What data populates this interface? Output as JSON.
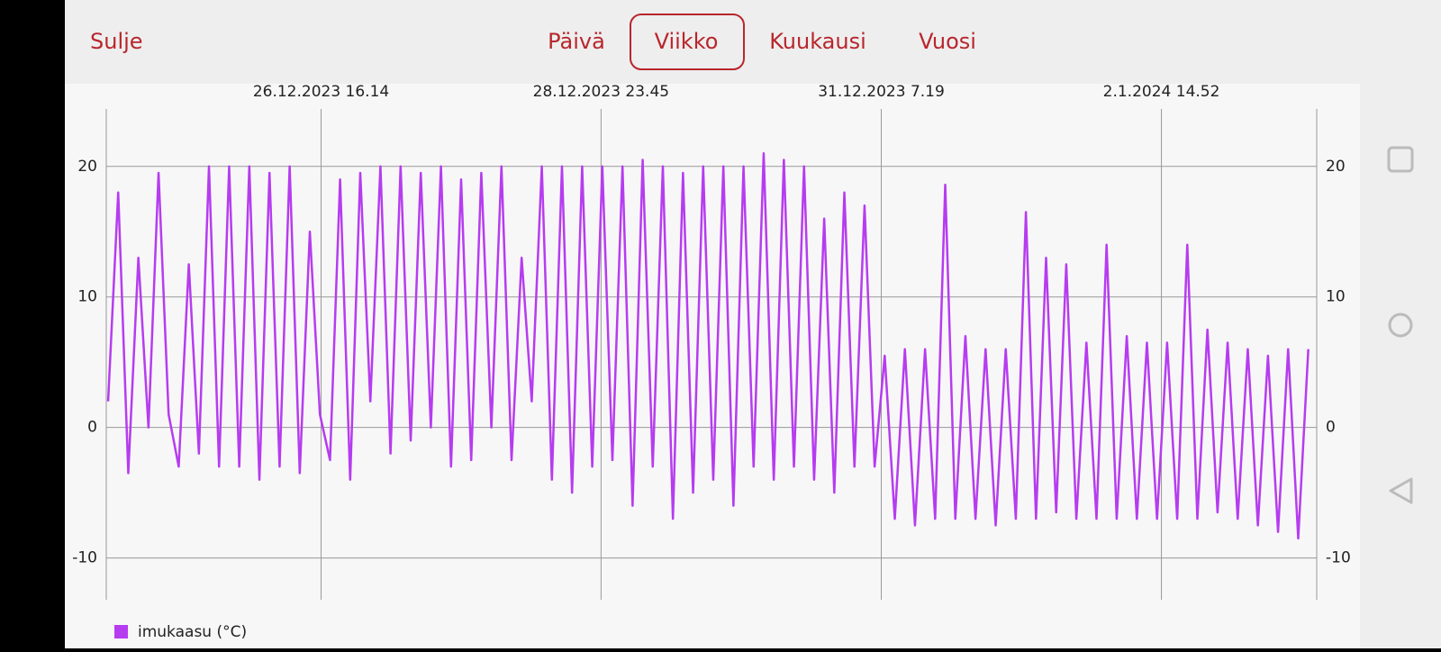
{
  "nav": {
    "close": "Sulje",
    "tabs": [
      "Päivä",
      "Viikko",
      "Kuukausi",
      "Vuosi"
    ],
    "active_tab": 1
  },
  "chart_data": {
    "type": "line",
    "grid": true,
    "xlim": [
      "2023-12-24 21:38",
      "2024-01-03 21:40"
    ],
    "xticks": [
      {
        "value": "2023-12-26 16:14",
        "label": "26.12.2023 16.14"
      },
      {
        "value": "2023-12-28 23:45",
        "label": "28.12.2023 23.45"
      },
      {
        "value": "2023-12-31 07:19",
        "label": "31.12.2023 7.19"
      },
      {
        "value": "2024-01-02 14:52",
        "label": "2.1.2024 14.52"
      }
    ],
    "ylim": [
      -13.2,
      24.4
    ],
    "yticks": [
      -10,
      0,
      10,
      20
    ],
    "x": [
      "2023-12-24 22:00",
      "2023-12-25 00:00",
      "2023-12-25 02:00",
      "2023-12-25 04:00",
      "2023-12-25 06:00",
      "2023-12-25 08:00",
      "2023-12-25 10:00",
      "2023-12-25 12:00",
      "2023-12-25 14:00",
      "2023-12-25 16:00",
      "2023-12-25 18:00",
      "2023-12-25 20:00",
      "2023-12-25 22:00",
      "2023-12-26 00:00",
      "2023-12-26 02:00",
      "2023-12-26 04:00",
      "2023-12-26 06:00",
      "2023-12-26 08:00",
      "2023-12-26 10:00",
      "2023-12-26 12:00",
      "2023-12-26 14:00",
      "2023-12-26 16:00",
      "2023-12-26 18:00",
      "2023-12-26 20:00",
      "2023-12-26 22:00",
      "2023-12-27 00:00",
      "2023-12-27 02:00",
      "2023-12-27 04:00",
      "2023-12-27 06:00",
      "2023-12-27 08:00",
      "2023-12-27 10:00",
      "2023-12-27 12:00",
      "2023-12-27 14:00",
      "2023-12-27 16:00",
      "2023-12-27 18:00",
      "2023-12-27 20:00",
      "2023-12-27 22:00",
      "2023-12-28 00:00",
      "2023-12-28 02:00",
      "2023-12-28 04:00",
      "2023-12-28 06:00",
      "2023-12-28 08:00",
      "2023-12-28 10:00",
      "2023-12-28 12:00",
      "2023-12-28 14:00",
      "2023-12-28 16:00",
      "2023-12-28 18:00",
      "2023-12-28 20:00",
      "2023-12-28 22:00",
      "2023-12-29 00:00",
      "2023-12-29 02:00",
      "2023-12-29 04:00",
      "2023-12-29 06:00",
      "2023-12-29 08:00",
      "2023-12-29 10:00",
      "2023-12-29 12:00",
      "2023-12-29 14:00",
      "2023-12-29 16:00",
      "2023-12-29 18:00",
      "2023-12-29 20:00",
      "2023-12-29 22:00",
      "2023-12-30 00:00",
      "2023-12-30 02:00",
      "2023-12-30 04:00",
      "2023-12-30 06:00",
      "2023-12-30 08:00",
      "2023-12-30 10:00",
      "2023-12-30 12:00",
      "2023-12-30 14:00",
      "2023-12-30 16:00",
      "2023-12-30 18:00",
      "2023-12-30 20:00",
      "2023-12-30 22:00",
      "2023-12-31 00:00",
      "2023-12-31 02:00",
      "2023-12-31 04:00",
      "2023-12-31 06:00",
      "2023-12-31 08:00",
      "2023-12-31 10:00",
      "2023-12-31 12:00",
      "2023-12-31 14:00",
      "2023-12-31 16:00",
      "2023-12-31 18:00",
      "2023-12-31 20:00",
      "2023-12-31 22:00",
      "2024-01-01 00:00",
      "2024-01-01 02:00",
      "2024-01-01 04:00",
      "2024-01-01 06:00",
      "2024-01-01 08:00",
      "2024-01-01 10:00",
      "2024-01-01 12:00",
      "2024-01-01 14:00",
      "2024-01-01 16:00",
      "2024-01-01 18:00",
      "2024-01-01 20:00",
      "2024-01-01 22:00",
      "2024-01-02 00:00",
      "2024-01-02 02:00",
      "2024-01-02 04:00",
      "2024-01-02 06:00",
      "2024-01-02 08:00",
      "2024-01-02 10:00",
      "2024-01-02 12:00",
      "2024-01-02 14:00",
      "2024-01-02 16:00",
      "2024-01-02 18:00",
      "2024-01-02 20:00",
      "2024-01-02 22:00",
      "2024-01-03 00:00",
      "2024-01-03 02:00",
      "2024-01-03 04:00",
      "2024-01-03 06:00",
      "2024-01-03 08:00",
      "2024-01-03 10:00",
      "2024-01-03 12:00",
      "2024-01-03 14:00",
      "2024-01-03 16:00",
      "2024-01-03 18:00",
      "2024-01-03 20:00"
    ],
    "series": [
      {
        "name": "imukaasu (°C)",
        "color": "#b63cf0",
        "values": [
          2,
          18,
          -3.5,
          13,
          0,
          19.5,
          1,
          -3,
          12.5,
          -2,
          20,
          -3,
          20,
          -3,
          20,
          -4,
          19.5,
          -3,
          20,
          -3.5,
          15,
          1,
          -2.5,
          19,
          -4,
          19.5,
          2,
          20,
          -2,
          20,
          -1,
          19.5,
          0,
          20,
          -3,
          19,
          -2.5,
          19.5,
          0,
          20,
          -2.5,
          13,
          2,
          20,
          -4,
          20,
          -5,
          20,
          -3,
          20,
          -2.5,
          20,
          -6,
          20.5,
          -3,
          20,
          -7,
          19.5,
          -5,
          20,
          -4,
          20,
          -6,
          20,
          -3,
          21,
          -4,
          20.5,
          -3,
          20,
          -4,
          16,
          -5,
          18,
          -3,
          17,
          -3,
          5.5,
          -7,
          6,
          -7.5,
          6,
          -7,
          18.6,
          -7,
          7,
          -7,
          6,
          -7.5,
          6,
          -7,
          16.5,
          -7,
          13,
          -6.5,
          12.5,
          -7,
          6.5,
          -7,
          14,
          -7,
          7,
          -7,
          6.5,
          -7,
          6.5,
          -7,
          14,
          -7,
          7.5,
          -6.5,
          6.5,
          -7,
          6,
          -7.5,
          5.5,
          -8,
          6,
          -8.5,
          6
        ]
      }
    ]
  }
}
